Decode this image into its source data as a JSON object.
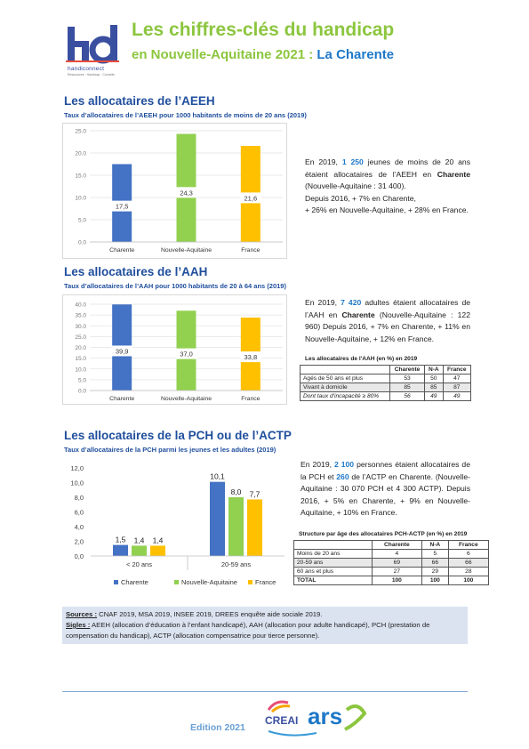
{
  "header": {
    "logo_text": "handiconnect",
    "logo_sub": "Ressources · Handicap · Conseils",
    "title_line1": "Les chiffres-clés du handicap",
    "title_line2_prefix": "en Nouvelle-Aquitaine 2021 : ",
    "title_line2_highlight": "La Charente"
  },
  "aeeh": {
    "title": "Les allocataires de l’AEEH",
    "subtitle": "Taux d’allocataires de l’AEEH pour 1000 habitants de moins de 20 ans (2019)",
    "para": {
      "p1a": "En 2019, ",
      "p1num": "1 250",
      "p1b": " jeunes de moins de 20 ans étaient allocataires de l’AEEH en ",
      "p1bold": "Charente",
      "p1c": " (Nouvelle-Aquitaine : 31 400).",
      "p2": "Depuis 2016, + 7% en Charente,",
      "p3": "+ 26% en Nouvelle-Aquitaine, + 28% en France."
    }
  },
  "aah": {
    "title": "Les allocataires de l’AAH",
    "subtitle": "Taux d’allocataires de l’AAH pour 1000 habitants de 20 à 64 ans (2019)",
    "para": {
      "p1a": "En 2019, ",
      "p1num": "7 420",
      "p1b": " adultes étaient allocataires de l’AAH en ",
      "p1bold": "Charente",
      "p1c": " (Nouvelle-Aquitaine : 122 960) Depuis 2016, + 7% en Charente, + 11% en Nouvelle-Aquitaine, + 12% en France."
    },
    "table": {
      "title": "Les allocataires de l'AAH (en %) en 2019",
      "headers": [
        "",
        "Charente",
        "N-A",
        "France"
      ],
      "rows": [
        [
          "Agés de 50 ans et plus",
          "53",
          "50",
          "47"
        ],
        [
          "Vivant à domicile",
          "85",
          "85",
          "87"
        ],
        [
          "Dont taux d'incapacité ≥ 80%",
          "56",
          "49",
          "49"
        ]
      ]
    }
  },
  "pch": {
    "title": "Les allocataires de la PCH ou de l’ACTP",
    "subtitle": "Taux d’allocataires de la PCH parmi les jeunes et les adultes (2019)",
    "para": {
      "p1a": "En 2019, ",
      "p1num": "2 100",
      "p1b": " personnes étaient allocataires de la PCH et ",
      "p1num2": "260",
      "p1c": " de l’ACTP en Charente. (Nouvelle-Aquitaine : 30 070 PCH et 4 300 ACTP). Depuis 2016, + 5% en Charente, + 9% en Nouvelle-Aquitaine, + 10% en France."
    },
    "table": {
      "title": "Structure par âge des allocataires PCH-ACTP (en %) en 2019",
      "headers": [
        "",
        "Charente",
        "N-A",
        "France"
      ],
      "rows": [
        [
          "Moins de 20 ans",
          "4",
          "5",
          "6"
        ],
        [
          "20-59 ans",
          "69",
          "66",
          "66"
        ],
        [
          "60 ans et plus",
          "27",
          "29",
          "28"
        ],
        [
          "TOTAL",
          "100",
          "100",
          "100"
        ]
      ]
    }
  },
  "footer": {
    "sources_label": "Sources :",
    "sources_text": " CNAF 2019, MSA 2019, INSEE 2019, DREES enquête aide sociale 2019.",
    "sigles_label": "Sigles :",
    "sigles_text": " AEEH (allocation d’éducation à l’enfant handicapé), AAH (allocation pour adulte handicapé), PCH (prestation de compensation du handicap), ACTP (allocation compensatrice pour tierce personne).",
    "edition": "Edition 2021",
    "partner_logo_text": "CREAI",
    "partner_logo_text2": "ars"
  },
  "colors": {
    "charente": "#4472c4",
    "nouvelle_aquitaine": "#92d050",
    "france": "#ffc000",
    "heading": "#1f4e9c",
    "title": "#8cc63f",
    "highlight": "#1e78c8"
  },
  "chart_data": [
    {
      "type": "bar",
      "categories": [
        "Charente",
        "Nouvelle-Aquitaine",
        "France"
      ],
      "values": [
        17.5,
        24.3,
        21.6
      ],
      "value_labels": [
        "17,5",
        "24,3",
        "21,6"
      ],
      "ylim": [
        0,
        25
      ],
      "ticks": [
        "0.0",
        "5.0",
        "10.0",
        "15.0",
        "20.0",
        "25.0"
      ],
      "grid": true,
      "title": "",
      "xlabel": "",
      "ylabel": ""
    },
    {
      "type": "bar",
      "categories": [
        "Charente",
        "Nouvelle-Aquitaine",
        "France"
      ],
      "values": [
        39.9,
        37.0,
        33.8
      ],
      "value_labels": [
        "39,9",
        "37,0",
        "33,8"
      ],
      "ylim": [
        0,
        40
      ],
      "ticks": [
        "0.0",
        "5.0",
        "10.0",
        "15.0",
        "20.0",
        "25.0",
        "30.0",
        "35.0",
        "40.0"
      ],
      "grid": true,
      "title": "",
      "xlabel": "",
      "ylabel": ""
    },
    {
      "type": "bar",
      "categories": [
        "< 20 ans",
        "20-59 ans"
      ],
      "series": [
        {
          "name": "Charente",
          "values": [
            1.5,
            10.1
          ],
          "labels": [
            "1,5",
            "10,1"
          ]
        },
        {
          "name": "Nouvelle-Aquitaine",
          "values": [
            1.4,
            8.0
          ],
          "labels": [
            "1,4",
            "8,0"
          ]
        },
        {
          "name": "France",
          "values": [
            1.4,
            7.7
          ],
          "labels": [
            "1,4",
            "7,7"
          ]
        }
      ],
      "ylim": [
        0,
        12
      ],
      "ticks": [
        "0,0",
        "2,0",
        "4,0",
        "6,0",
        "8,0",
        "10,0",
        "12,0"
      ],
      "grid": false,
      "legend": "bottom",
      "title": "",
      "xlabel": "",
      "ylabel": ""
    }
  ]
}
